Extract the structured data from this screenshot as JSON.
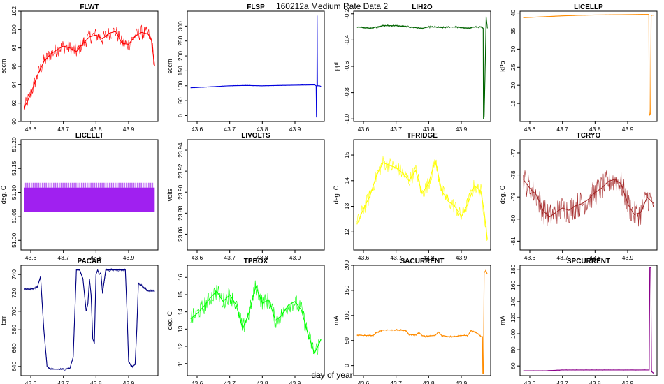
{
  "figure": {
    "suptitle": "160212a   Medium Rate Data 2",
    "xlabel": "day of year"
  },
  "chart_data": [
    {
      "type": "line",
      "title": "FLWT",
      "ylabel": "sccm",
      "color": "#ff0000",
      "xlim": [
        43.57,
        43.99
      ],
      "ylim": [
        90,
        102
      ],
      "xticks": [
        "43.6",
        "43.7",
        "43.8",
        "43.9"
      ],
      "yticks": [
        "90",
        "92",
        "94",
        "96",
        "98",
        "100",
        "102"
      ],
      "series": [
        {
          "name": "FLWT",
          "noise": 0.8,
          "x": [
            43.58,
            43.6,
            43.62,
            43.64,
            43.66,
            43.68,
            43.7,
            43.72,
            43.74,
            43.76,
            43.78,
            43.8,
            43.82,
            43.84,
            43.86,
            43.88,
            43.9,
            43.92,
            43.94,
            43.96,
            43.97,
            43.98
          ],
          "y": [
            91.5,
            93.0,
            95.0,
            96.5,
            97.3,
            97.8,
            98.2,
            98.0,
            97.6,
            98.5,
            99.2,
            99.4,
            99.0,
            99.6,
            99.8,
            98.5,
            98.4,
            99.3,
            99.7,
            99.5,
            98.8,
            96.0
          ]
        }
      ]
    },
    {
      "type": "line",
      "title": "FLSP",
      "ylabel": "sccm",
      "color": "#0000dd",
      "xlim": [
        43.57,
        43.99
      ],
      "ylim": [
        -20,
        350
      ],
      "xticks": [
        "43.6",
        "43.7",
        "43.8",
        "43.9"
      ],
      "yticks": [
        "0",
        "50",
        "100",
        "150",
        "200",
        "250",
        "300"
      ],
      "series": [
        {
          "name": "FLSP",
          "noise": 1,
          "x": [
            43.58,
            43.65,
            43.7,
            43.75,
            43.8,
            43.85,
            43.9,
            43.96,
            43.965,
            43.966,
            43.967,
            43.968,
            43.969,
            43.975,
            43.98
          ],
          "y": [
            93,
            97,
            100,
            101,
            100,
            101,
            102,
            103,
            100,
            -5,
            -5,
            335,
            100,
            100,
            98
          ]
        }
      ]
    },
    {
      "type": "line",
      "title": "LIH2O",
      "ylabel": "ppt",
      "color": "#006400",
      "xlim": [
        43.57,
        43.99
      ],
      "ylim": [
        -1.02,
        -0.18
      ],
      "xticks": [
        "43.6",
        "43.7",
        "43.8",
        "43.9"
      ],
      "yticks": [
        "-1.0",
        "-0.8",
        "-0.6",
        "-0.4",
        "-0.2"
      ],
      "series": [
        {
          "name": "LIH2O",
          "noise": 0.008,
          "x": [
            43.58,
            43.6,
            43.62,
            43.64,
            43.66,
            43.68,
            43.7,
            43.72,
            43.74,
            43.76,
            43.78,
            43.8,
            43.82,
            43.84,
            43.86,
            43.88,
            43.9,
            43.92,
            43.94,
            43.96,
            43.967,
            43.968,
            43.97,
            43.972,
            43.974,
            43.976,
            43.98
          ],
          "y": [
            -0.3,
            -0.305,
            -0.31,
            -0.3,
            -0.29,
            -0.29,
            -0.29,
            -0.295,
            -0.3,
            -0.305,
            -0.31,
            -0.3,
            -0.3,
            -0.305,
            -0.3,
            -0.3,
            -0.305,
            -0.31,
            -0.3,
            -0.3,
            -0.31,
            -1.0,
            -0.98,
            -0.76,
            -0.52,
            -0.22,
            -0.31
          ]
        }
      ]
    },
    {
      "type": "line",
      "title": "LICELLP",
      "ylabel": "kPa",
      "color": "#ff8c00",
      "xlim": [
        43.57,
        43.99
      ],
      "ylim": [
        10,
        40.5
      ],
      "xticks": [
        "43.6",
        "43.7",
        "43.8",
        "43.9"
      ],
      "yticks": [
        "15",
        "20",
        "25",
        "30",
        "35",
        "40"
      ],
      "series": [
        {
          "name": "LICELLP",
          "noise": 0.03,
          "x": [
            43.58,
            43.65,
            43.7,
            43.75,
            43.8,
            43.85,
            43.9,
            43.95,
            43.965,
            43.966,
            43.967,
            43.97,
            43.972,
            43.973,
            43.975,
            43.98
          ],
          "y": [
            38.7,
            39.0,
            39.2,
            39.35,
            39.45,
            39.5,
            39.55,
            39.6,
            39.6,
            13.2,
            11.8,
            12.2,
            39.3,
            39.3,
            39.4,
            39.4
          ]
        }
      ]
    },
    {
      "type": "bar",
      "title": "LICELLT",
      "ylabel": "deg. C",
      "color": "#a020f0",
      "xlim": [
        43.57,
        43.99
      ],
      "ylim": [
        50.98,
        51.21
      ],
      "xticks": [
        "43.6",
        "43.7",
        "43.8",
        "43.9"
      ],
      "yticks": [
        "51.00",
        "51.05",
        "51.10",
        "51.15",
        "51.20"
      ],
      "band": {
        "x_start": 43.58,
        "x_end": 43.98,
        "low": 51.06,
        "mid": 51.11,
        "high": 51.12
      }
    },
    {
      "type": "line",
      "title": "LIVOLTS",
      "ylabel": "volts",
      "color": "#000000",
      "xlim": [
        43.57,
        43.99
      ],
      "ylim": [
        23.845,
        23.95
      ],
      "xticks": [
        "43.6",
        "43.7",
        "43.8",
        "43.9"
      ],
      "yticks": [
        "23.86",
        "23.88",
        "23.90",
        "23.92",
        "23.94"
      ],
      "series": []
    },
    {
      "type": "line",
      "title": "TFRIDGE",
      "ylabel": "deg. C",
      "color": "#ffff00",
      "xlim": [
        43.57,
        43.99
      ],
      "ylim": [
        11.3,
        15.6
      ],
      "xticks": [
        "43.6",
        "43.7",
        "43.8",
        "43.9"
      ],
      "yticks": [
        "12",
        "13",
        "14",
        "15"
      ],
      "series": [
        {
          "name": "TFRIDGE",
          "noise": 0.3,
          "x": [
            43.58,
            43.6,
            43.62,
            43.64,
            43.66,
            43.68,
            43.7,
            43.72,
            43.74,
            43.76,
            43.78,
            43.8,
            43.82,
            43.84,
            43.86,
            43.88,
            43.9,
            43.92,
            43.94,
            43.96,
            43.97,
            43.98
          ],
          "y": [
            12.3,
            12.9,
            13.4,
            14.2,
            14.7,
            14.6,
            14.5,
            14.3,
            14.0,
            14.4,
            13.5,
            13.9,
            14.8,
            13.6,
            13.2,
            13.0,
            12.6,
            13.1,
            13.8,
            13.6,
            12.8,
            11.7
          ]
        }
      ]
    },
    {
      "type": "line",
      "title": "TCRYO",
      "ylabel": "deg. C",
      "color": "#a52a2a",
      "xlim": [
        43.57,
        43.99
      ],
      "ylim": [
        -81.4,
        -76.4
      ],
      "xticks": [
        "43.6",
        "43.7",
        "43.8",
        "43.9"
      ],
      "yticks": [
        "-81",
        "-80",
        "-79",
        "-78",
        "-77"
      ],
      "series": [
        {
          "name": "TCRYO",
          "noise": 0.6,
          "x": [
            43.58,
            43.6,
            43.62,
            43.64,
            43.66,
            43.68,
            43.7,
            43.72,
            43.74,
            43.76,
            43.78,
            43.8,
            43.82,
            43.84,
            43.86,
            43.88,
            43.9,
            43.92,
            43.94,
            43.96,
            43.98
          ],
          "y": [
            -78.2,
            -78.6,
            -78.9,
            -79.6,
            -79.9,
            -79.7,
            -79.5,
            -79.6,
            -79.4,
            -79.3,
            -79.1,
            -78.8,
            -78.6,
            -78.3,
            -78.2,
            -78.4,
            -79.3,
            -79.8,
            -79.7,
            -79.0,
            -79.3
          ]
        }
      ]
    },
    {
      "type": "line",
      "title": "PACAB",
      "ylabel": "torr",
      "color": "#000080",
      "xlim": [
        43.57,
        43.99
      ],
      "ylim": [
        630,
        750
      ],
      "xticks": [
        "43.6",
        "43.7",
        "43.8",
        "43.9"
      ],
      "yticks": [
        "640",
        "660",
        "680",
        "700",
        "720",
        "740"
      ],
      "series": [
        {
          "name": "PACAB",
          "noise": 1.5,
          "x": [
            43.58,
            43.6,
            43.62,
            43.63,
            43.64,
            43.65,
            43.66,
            43.7,
            43.72,
            43.73,
            43.74,
            43.75,
            43.76,
            43.77,
            43.775,
            43.78,
            43.785,
            43.79,
            43.795,
            43.8,
            43.805,
            43.81,
            43.815,
            43.82,
            43.83,
            43.84,
            43.85,
            43.86,
            43.87,
            43.88,
            43.89,
            43.895,
            43.9,
            43.91,
            43.92,
            43.925,
            43.93,
            43.94,
            43.96,
            43.98
          ],
          "y": [
            724,
            724,
            726,
            738,
            680,
            640,
            637,
            637,
            638,
            650,
            745,
            745,
            735,
            700,
            708,
            735,
            718,
            670,
            665,
            740,
            745,
            740,
            742,
            720,
            745,
            745,
            745,
            745,
            745,
            745,
            745,
            700,
            645,
            640,
            642,
            680,
            730,
            728,
            722,
            722
          ]
        }
      ]
    },
    {
      "type": "line",
      "title": "TPBOX",
      "ylabel": "deg. C",
      "color": "#00ff00",
      "xlim": [
        43.57,
        43.99
      ],
      "ylim": [
        10.3,
        16.7
      ],
      "xticks": [
        "43.6",
        "43.7",
        "43.8",
        "43.9"
      ],
      "yticks": [
        "11",
        "12",
        "13",
        "14",
        "15",
        "16"
      ],
      "series": [
        {
          "name": "TPBOX",
          "noise": 0.5,
          "x": [
            43.58,
            43.6,
            43.62,
            43.64,
            43.66,
            43.68,
            43.7,
            43.72,
            43.74,
            43.76,
            43.78,
            43.8,
            43.82,
            43.84,
            43.86,
            43.88,
            43.9,
            43.92,
            43.94,
            43.96,
            43.98
          ],
          "y": [
            13.6,
            13.9,
            14.3,
            14.8,
            15.2,
            14.6,
            15.0,
            14.4,
            13.0,
            14.0,
            15.5,
            14.5,
            14.7,
            13.5,
            13.8,
            14.4,
            14.6,
            14.1,
            12.7,
            11.6,
            12.4
          ]
        }
      ]
    },
    {
      "type": "line",
      "title": "SACURRENT",
      "ylabel": "mA",
      "color": "#ff8c00",
      "xlim": [
        43.57,
        43.99
      ],
      "ylim": [
        -20,
        200
      ],
      "xticks": [
        "43.6",
        "43.7",
        "43.8",
        "43.9"
      ],
      "yticks": [
        "0",
        "50",
        "100",
        "150",
        "200"
      ],
      "series": [
        {
          "name": "SACURRENT",
          "noise": 2,
          "x": [
            43.58,
            43.6,
            43.63,
            43.64,
            43.66,
            43.7,
            43.73,
            43.74,
            43.76,
            43.77,
            43.78,
            43.79,
            43.8,
            43.82,
            43.83,
            43.84,
            43.86,
            43.88,
            43.9,
            43.92,
            43.93,
            43.95,
            43.96,
            43.965,
            43.966,
            43.968,
            43.97,
            43.975,
            43.98
          ],
          "y": [
            61,
            60,
            60,
            66,
            71,
            71,
            70,
            62,
            61,
            66,
            60,
            58,
            59,
            60,
            67,
            60,
            58,
            58,
            60,
            60,
            70,
            64,
            58,
            58,
            -15,
            -15,
            185,
            190,
            182
          ]
        }
      ]
    },
    {
      "type": "line",
      "title": "SPCURRENT",
      "ylabel": "mA",
      "color": "#8b008b",
      "xlim": [
        43.57,
        43.99
      ],
      "ylim": [
        48,
        185
      ],
      "xticks": [
        "43.6",
        "43.7",
        "43.8",
        "43.9"
      ],
      "yticks": [
        "60",
        "80",
        "100",
        "120",
        "140",
        "160",
        "180"
      ],
      "series": [
        {
          "name": "SPCURRENT",
          "noise": 0.4,
          "x": [
            43.58,
            43.65,
            43.7,
            43.75,
            43.8,
            43.85,
            43.9,
            43.95,
            43.966,
            43.968,
            43.971,
            43.973,
            43.98
          ],
          "y": [
            54,
            54,
            55,
            55,
            55,
            55,
            55,
            55,
            55,
            182,
            182,
            53,
            51
          ]
        }
      ]
    }
  ]
}
